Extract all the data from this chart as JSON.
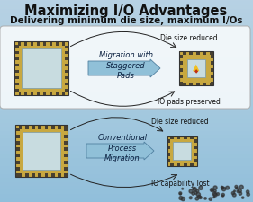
{
  "title": "Maximizing I/O Advantages",
  "subtitle": "Delivering minimum die size, maximum I/Os",
  "bg_color": "#b8d0e0",
  "row1_label_top": "Die size reduced",
  "row1_label_bot": "IO pads preserved",
  "row1_arrow_label": "Migration with\nStaggered\nPads",
  "row2_label_top": "Die size reduced",
  "row2_label_bot": "IO capability lost",
  "row2_arrow_label": "Conventional\nProcess\nMigration",
  "pad_color_light": "#c8a840",
  "pad_color_dark": "#484030",
  "inner_color": "#c8dce0",
  "white_box_edge": "#aaaaaa",
  "arrow_face": "#90c0d8",
  "arrow_edge": "#5080a0",
  "title_color": "#111111",
  "label_color": "#111111",
  "curved_arrow_color": "#222222"
}
